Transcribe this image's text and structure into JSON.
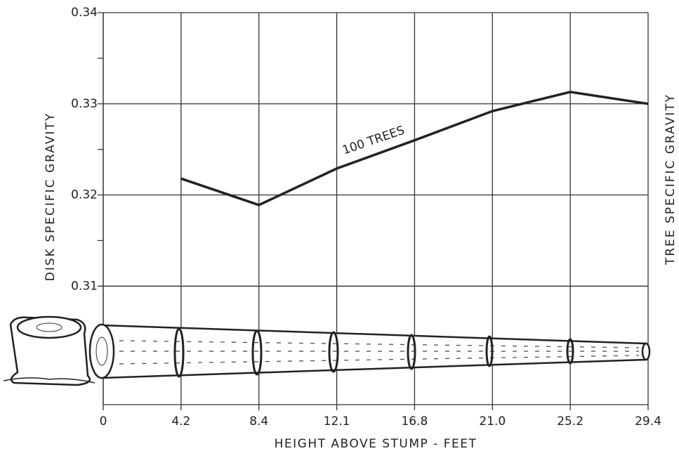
{
  "chart_data": {
    "type": "line",
    "y_label": "DISK SPECIFIC GRAVITY",
    "y2_label": "TREE SPECIFIC GRAVITY",
    "x_label": "HEIGHT ABOVE STUMP - FEET",
    "annotation": "100 TREES",
    "categories": [
      "0",
      "4.2",
      "8.4",
      "12.1",
      "16.8",
      "21.0",
      "25.2",
      "29.4"
    ],
    "series": [
      {
        "name": "100 TREES",
        "color": "#222222",
        "values": [
          null,
          0.3218,
          0.3189,
          0.3229,
          0.326,
          0.3292,
          0.3313,
          0.33
        ]
      }
    ],
    "ylim": [
      0.297,
      0.34
    ],
    "yticks": [
      0.31,
      0.32,
      0.33,
      0.34
    ],
    "yminor": [
      0.305,
      0.315,
      0.325,
      0.335
    ],
    "grid": true
  }
}
